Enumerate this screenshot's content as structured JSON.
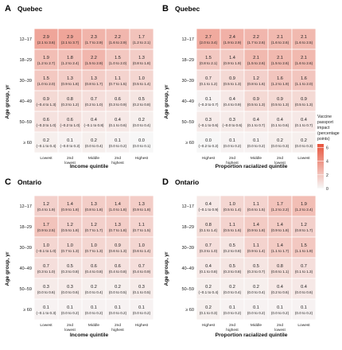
{
  "legend": {
    "title_lines": [
      "Vaccine",
      "passport",
      "impact",
      "(percentage",
      "points)"
    ],
    "ticks": [
      "6",
      "4",
      "2",
      "0"
    ],
    "tick_values": [
      6,
      4,
      2,
      0
    ],
    "color_low": "#f7f7f7",
    "color_high": "#e8543c"
  },
  "chart_data": [
    {
      "type": "heatmap",
      "panel": "A",
      "title": "Quebec",
      "xlabel": "Income quintile",
      "ylabel": "Age group, yr",
      "categories": [
        "Lowest",
        "2nd lowest",
        "Middle",
        "2nd highest",
        "Highest"
      ],
      "rows": [
        "12–17",
        "18–29",
        "30–39",
        "40–49",
        "50–59",
        "≥ 60"
      ],
      "values": [
        [
          2.9,
          2.9,
          2.3,
          2.2,
          1.7
        ],
        [
          1.9,
          1.8,
          2.2,
          1.5,
          1.3
        ],
        [
          1.5,
          1.3,
          1.3,
          1.1,
          1.0
        ],
        [
          0.9,
          0.8,
          0.7,
          0.6,
          0.5
        ],
        [
          0.6,
          0.6,
          0.4,
          0.4,
          0.2
        ],
        [
          0.2,
          0.1,
          0.2,
          0.1,
          0.0
        ]
      ],
      "ci": [
        [
          "(2.1 to 3.6)",
          "(2.1 to 3.7)",
          "(1.7 to 2.9)",
          "(1.6 to 2.9)",
          "(1.2 to 2.1)"
        ],
        [
          "(1.2 to 2.7)",
          "(1.2 to 2.4)",
          "(1.5 to 2.9)",
          "(1.0 to 2.0)",
          "(0.8 to 1.8)"
        ],
        [
          "(1.0 to 2.0)",
          "(0.9 to 1.8)",
          "(0.8 to 1.7)",
          "(0.7 to 1.5)",
          "(0.5 to 1.4)"
        ],
        [
          "(0.4 to 1.3)",
          "(0.3 to 1.2)",
          "(0.2 to 1.0)",
          "(0.3 to 0.9)",
          "(0.2 to 0.8)"
        ],
        [
          "(0.3 to 1.0)",
          "(0.2 to 1.0)",
          "(0.1 to 0.8)",
          "(0.1 to 0.6)",
          "(0.0 to 0.4)"
        ],
        [
          "(0.1 to 0.4)",
          "(0.0 to 0.2)",
          "(0.0 to 0.4)",
          "(0.0 to 0.2)",
          "(0.0 to 0.1)"
        ]
      ],
      "ci_neg": [
        [
          false,
          false,
          false,
          false,
          false
        ],
        [
          false,
          false,
          false,
          false,
          false
        ],
        [
          false,
          false,
          false,
          false,
          false
        ],
        [
          true,
          false,
          false,
          false,
          false
        ],
        [
          true,
          true,
          true,
          false,
          false
        ],
        [
          true,
          true,
          false,
          false,
          false
        ]
      ]
    },
    {
      "type": "heatmap",
      "panel": "B",
      "title": "Quebec",
      "xlabel": "Proportion racialized quintile",
      "ylabel": "Age group, yr",
      "categories": [
        "Highest",
        "2nd highest",
        "Middle",
        "2nd lowest",
        "Lowest"
      ],
      "rows": [
        "12–17",
        "18–29",
        "30–39",
        "40–49",
        "50–59",
        "≥ 60"
      ],
      "values": [
        [
          2.7,
          2.4,
          2.2,
          2.1,
          2.1
        ],
        [
          1.5,
          1.4,
          2.1,
          2.1,
          2.1
        ],
        [
          0.7,
          0.9,
          1.2,
          1.6,
          1.6
        ],
        [
          0.1,
          0.4,
          0.9,
          0.9,
          0.9
        ],
        [
          0.3,
          0.3,
          0.4,
          0.4,
          0.4
        ],
        [
          0.0,
          0.1,
          0.1,
          0.2,
          0.2
        ]
      ],
      "ci": [
        [
          "(2.0 to 3.4)",
          "(1.9 to 2.9)",
          "(1.7 to 2.6)",
          "(1.6 to 2.6)",
          "(1.6 to 2.5)"
        ],
        [
          "(0.8 to 2.1)",
          "(0.9 to 1.9)",
          "(1.5 to 2.6)",
          "(1.5 to 2.6)",
          "(1.6 to 2.6)"
        ],
        [
          "(0.1 to 1.2)",
          "(0.5 to 1.3)",
          "(0.8 to 1.6)",
          "(1.2 to 1.9)",
          "(1.1 to 2.0)"
        ],
        [
          "(0.3 to 0.7)",
          "(0.4 to 0.9)",
          "(0.5 to 1.3)",
          "(0.5 to 1.3)",
          "(0.5 to 1.3)"
        ],
        [
          "(0.1 to 0.6)",
          "(0.0 to 0.6)",
          "(0.1 to 0.7)",
          "(0.1 to 0.6)",
          "(0.1 to 0.7)"
        ],
        [
          "(0.2 to 0.2)",
          "(0.0 to 0.2)",
          "(0.0 to 0.2)",
          "(0.0 to 0.3)",
          "(0.0 to 0.3)"
        ]
      ],
      "ci_neg": [
        [
          false,
          false,
          false,
          false,
          false
        ],
        [
          false,
          false,
          false,
          false,
          false
        ],
        [
          false,
          false,
          false,
          false,
          false
        ],
        [
          true,
          false,
          false,
          false,
          false
        ],
        [
          true,
          true,
          false,
          false,
          false
        ],
        [
          true,
          false,
          false,
          false,
          false
        ]
      ]
    },
    {
      "type": "heatmap",
      "panel": "C",
      "title": "Ontario",
      "xlabel": "Income quintile",
      "ylabel": "Age group, yr",
      "categories": [
        "Lowest",
        "2nd lowest",
        "Middle",
        "2nd highest",
        "Highest"
      ],
      "rows": [
        "12–17",
        "18–29",
        "30–39",
        "40–49",
        "50–59",
        "≥ 60"
      ],
      "values": [
        [
          1.2,
          1.4,
          1.3,
          1.4,
          1.3
        ],
        [
          1.7,
          1.2,
          1.2,
          1.3,
          1.1
        ],
        [
          1.0,
          1.0,
          1.0,
          0.9,
          1.0
        ],
        [
          0.7,
          0.5,
          0.6,
          0.6,
          0.7
        ],
        [
          0.3,
          0.3,
          0.2,
          0.2,
          0.3
        ],
        [
          0.1,
          0.1,
          0.1,
          0.1,
          0.1
        ]
      ],
      "ci": [
        [
          "(0.4 to 1.9)",
          "(0.9 to 1.8)",
          "(0.8 to 1.8)",
          "(1.0 to 1.8)",
          "(0.9 to 1.8)"
        ],
        [
          "(0.9 to 2.5)",
          "(0.5 to 1.8)",
          "(0.7 to 1.7)",
          "(0.7 to 1.8)",
          "(0.7 to 1.5)"
        ],
        [
          "(0.1 to 1.0)",
          "(0.7 to 1.3)",
          "(0.7 to 1.3)",
          "(0.6 to 1.3)",
          "(0.6 to 1.4)"
        ],
        [
          "(0.3 to 1.0)",
          "(0.3 to 0.8)",
          "(0.4 to 0.8)",
          "(0.4 to 0.8)",
          "(0.4 to 0.9)"
        ],
        [
          "(0.0 to 0.6)",
          "(0.0 to 0.6)",
          "(0.0 to 0.4)",
          "(0.0 to 0.5)",
          "(0.1 to 0.5)"
        ],
        [
          "(0.1 to 0.3)",
          "(0.0 to 0.2)",
          "(0.0 to 0.2)",
          "(0.0 to 0.2)",
          "(0.0 to 0.2)"
        ]
      ],
      "ci_neg": [
        [
          false,
          false,
          false,
          false,
          false
        ],
        [
          false,
          false,
          false,
          false,
          false
        ],
        [
          true,
          false,
          false,
          false,
          false
        ],
        [
          false,
          false,
          false,
          false,
          false
        ],
        [
          false,
          false,
          false,
          false,
          false
        ],
        [
          true,
          false,
          false,
          false,
          false
        ]
      ]
    },
    {
      "type": "heatmap",
      "panel": "D",
      "title": "Ontario",
      "xlabel": "Proportion racialized quintile",
      "ylabel": "Age group, yr",
      "categories": [
        "Highest",
        "2nd highest",
        "Middle",
        "2nd lowest",
        "Lowest"
      ],
      "rows": [
        "12–17",
        "18–29",
        "30–39",
        "40–49",
        "50–59",
        "≥ 60"
      ],
      "values": [
        [
          0.4,
          1.0,
          1.1,
          1.7,
          1.9
        ],
        [
          0.8,
          1.1,
          1.4,
          1.4,
          1.2
        ],
        [
          0.7,
          0.5,
          1.1,
          1.4,
          1.5
        ],
        [
          0.4,
          0.5,
          0.5,
          0.8,
          0.7
        ],
        [
          0.2,
          0.2,
          0.2,
          0.4,
          0.4
        ],
        [
          0.2,
          0.1,
          0.1,
          0.1,
          0.1
        ]
      ],
      "ci": [
        [
          "(0.1 to 0.9)",
          "(0.5 to 1.4)",
          "(0.6 to 1.5)",
          "(1.2 to 2.2)",
          "(1.2 to 2.4)"
        ],
        [
          "(0.1 to 1.4)",
          "(0.5 to 1.6)",
          "(0.9 to 1.8)",
          "(0.9 to 1.8)",
          "(0.8 to 1.7)"
        ],
        [
          "(0.3 to 1.0)",
          "(0.2 to 0.8)",
          "(0.9 to 1.4)",
          "(1.1 to 1.7)",
          "(1.1 to 1.9)"
        ],
        [
          "(0.1 to 0.8)",
          "(0.3 to 0.8)",
          "(0.3 to 0.7)",
          "(0.6 to 1.1)",
          "(0.1 to 1.3)"
        ],
        [
          "(0.1 to 0.4)",
          "(0.0 to 0.4)",
          "(0.0 to 0.4)",
          "(0.2 to 0.6)",
          "(0.0 to 0.6)"
        ],
        [
          "(0.1 to 0.3)",
          "(0.0 to 0.2)",
          "(0.0 to 0.2)",
          "(0.0 to 0.2)",
          "(0.0 to 0.2)"
        ]
      ],
      "ci_neg": [
        [
          true,
          false,
          false,
          false,
          false
        ],
        [
          false,
          false,
          false,
          false,
          false
        ],
        [
          false,
          false,
          false,
          false,
          false
        ],
        [
          false,
          false,
          false,
          false,
          false
        ],
        [
          true,
          false,
          false,
          false,
          false
        ],
        [
          false,
          false,
          false,
          false,
          false
        ]
      ]
    }
  ]
}
